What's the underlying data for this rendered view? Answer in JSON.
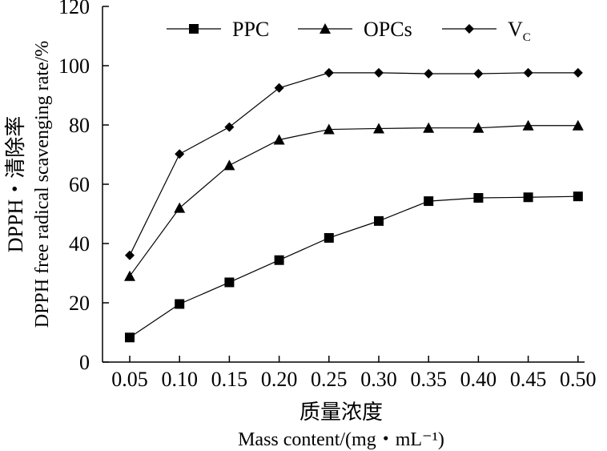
{
  "chart_data": {
    "type": "line",
    "x": [
      0.05,
      0.1,
      0.15,
      0.2,
      0.25,
      0.3,
      0.35,
      0.4,
      0.45,
      0.5
    ],
    "x_tick_labels": [
      "0.05",
      "0.10",
      "0.15",
      "0.20",
      "0.25",
      "0.30",
      "0.35",
      "0.40",
      "0.45",
      "0.50"
    ],
    "y_ticks": [
      0,
      20,
      40,
      60,
      80,
      100,
      120
    ],
    "y_tick_labels": [
      "0",
      "20",
      "40",
      "60",
      "80",
      "100",
      "120"
    ],
    "ylim": [
      0,
      120
    ],
    "xlabel_cn": "质量浓度",
    "xlabel_en": "Mass content/(mg・mL⁻¹)",
    "ylabel_cn": "DPPH・清除率",
    "ylabel_en": "DPPH free radical scavenging rate/%",
    "legend_position": "top",
    "grid": false,
    "series": [
      {
        "name": "PPC",
        "label_main": "PPC",
        "label_sub": "",
        "marker": "square",
        "values": [
          8.3,
          19.6,
          26.9,
          34.4,
          41.9,
          47.6,
          54.3,
          55.4,
          55.6,
          55.9
        ]
      },
      {
        "name": "OPCs",
        "label_main": "OPCs",
        "label_sub": "",
        "marker": "triangle",
        "values": [
          29.0,
          52.0,
          66.4,
          75.0,
          78.5,
          78.8,
          79.0,
          79.0,
          79.8,
          79.8
        ]
      },
      {
        "name": "VC",
        "label_main": "V",
        "label_sub": "C",
        "marker": "diamond",
        "values": [
          36.0,
          70.2,
          79.3,
          92.5,
          97.6,
          97.6,
          97.3,
          97.3,
          97.6,
          97.6
        ]
      }
    ]
  }
}
